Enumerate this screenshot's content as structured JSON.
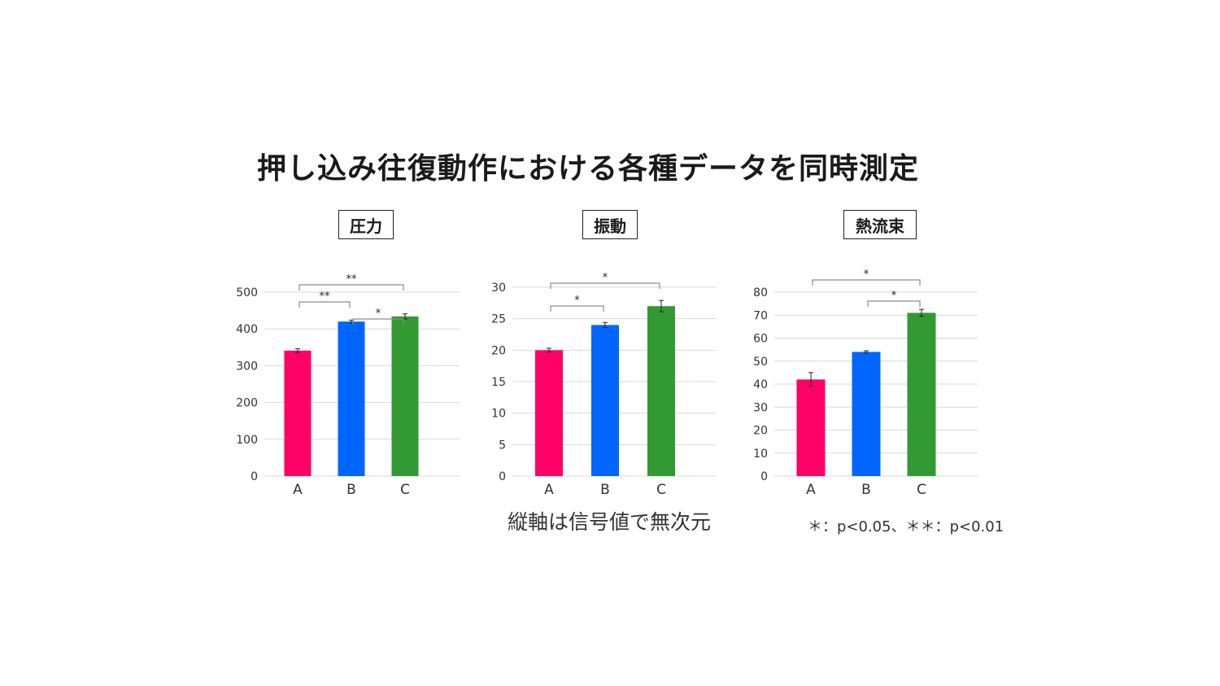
{
  "title": "押し込み往復動作における各種データを同時測定",
  "footnote": "縦軸は信号値で無次元",
  "significance_note": "＊：p<0.05、＊＊：p<0.01",
  "colors": {
    "A": "#ff0066",
    "B": "#0066ff",
    "C": "#339933",
    "grid": "#d9d9d9",
    "axis_text": "#333333"
  },
  "chart_data": [
    {
      "type": "bar",
      "title": "圧力",
      "categories": [
        "A",
        "B",
        "C"
      ],
      "values": [
        341,
        420,
        434
      ],
      "errors": [
        5,
        4,
        7
      ],
      "ylim": [
        0,
        500
      ],
      "yticks": [
        0,
        100,
        200,
        300,
        400,
        500
      ],
      "grid": true,
      "significance": [
        {
          "from": 0,
          "to": 2,
          "label": "**"
        },
        {
          "from": 0,
          "to": 1,
          "label": "**"
        },
        {
          "from": 1,
          "to": 2,
          "label": "*"
        }
      ]
    },
    {
      "type": "bar",
      "title": "振動",
      "categories": [
        "A",
        "B",
        "C"
      ],
      "values": [
        20,
        24,
        27
      ],
      "errors": [
        0.3,
        0.4,
        0.9
      ],
      "ylim": [
        0,
        30
      ],
      "yticks": [
        0,
        5,
        10,
        15,
        20,
        25,
        30
      ],
      "grid": true,
      "significance": [
        {
          "from": 0,
          "to": 2,
          "label": "*"
        },
        {
          "from": 0,
          "to": 1,
          "label": "*"
        }
      ]
    },
    {
      "type": "bar",
      "title": "熱流束",
      "categories": [
        "A",
        "B",
        "C"
      ],
      "values": [
        42,
        54,
        71
      ],
      "errors": [
        3,
        0.5,
        1.5
      ],
      "ylim": [
        0,
        80
      ],
      "yticks": [
        0,
        10,
        20,
        30,
        40,
        50,
        60,
        70,
        80
      ],
      "grid": true,
      "significance": [
        {
          "from": 0,
          "to": 2,
          "label": "*"
        },
        {
          "from": 1,
          "to": 2,
          "label": "*"
        }
      ]
    }
  ]
}
